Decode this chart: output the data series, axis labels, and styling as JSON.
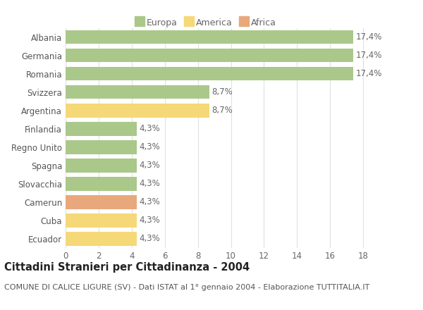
{
  "categories": [
    "Albania",
    "Germania",
    "Romania",
    "Svizzera",
    "Argentina",
    "Finlandia",
    "Regno Unito",
    "Spagna",
    "Slovacchia",
    "Camerun",
    "Cuba",
    "Ecuador"
  ],
  "values": [
    17.4,
    17.4,
    17.4,
    8.7,
    8.7,
    4.3,
    4.3,
    4.3,
    4.3,
    4.3,
    4.3,
    4.3
  ],
  "labels": [
    "17,4%",
    "17,4%",
    "17,4%",
    "8,7%",
    "8,7%",
    "4,3%",
    "4,3%",
    "4,3%",
    "4,3%",
    "4,3%",
    "4,3%",
    "4,3%"
  ],
  "continent": [
    "Europa",
    "Europa",
    "Europa",
    "Europa",
    "America",
    "Europa",
    "Europa",
    "Europa",
    "Europa",
    "Africa",
    "America",
    "America"
  ],
  "colors": {
    "Europa": "#aac88a",
    "America": "#f5d878",
    "Africa": "#e8a87c"
  },
  "xlim": [
    0,
    18.8
  ],
  "xticks": [
    0,
    2,
    4,
    6,
    8,
    10,
    12,
    14,
    16,
    18
  ],
  "title": "Cittadini Stranieri per Cittadinanza - 2004",
  "subtitle": "COMUNE DI CALICE LIGURE (SV) - Dati ISTAT al 1° gennaio 2004 - Elaborazione TUTTITALIA.IT",
  "background_color": "#ffffff",
  "grid_color": "#e0e0e0",
  "bar_height": 0.75,
  "label_fontsize": 8.5,
  "ytick_fontsize": 8.5,
  "xtick_fontsize": 8.5,
  "title_fontsize": 10.5,
  "subtitle_fontsize": 8.0,
  "legend_fontsize": 9.0
}
